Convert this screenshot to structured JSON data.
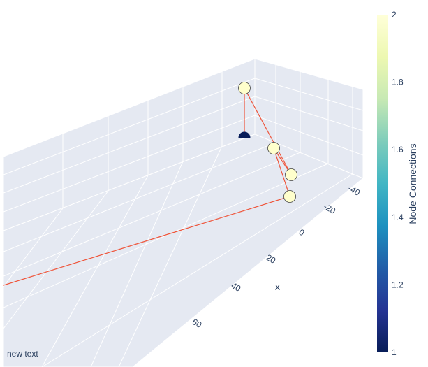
{
  "chart_data": {
    "type": "scatter3d",
    "title": "",
    "annotation": "new text",
    "axes": {
      "x": {
        "label": "x",
        "ticks": [
          -40,
          -20,
          0,
          20,
          40,
          60
        ]
      },
      "y": {
        "label": "",
        "ticks": []
      },
      "z": {
        "label": "",
        "ticks": []
      }
    },
    "colorbar": {
      "title": "Node Connections",
      "range": [
        1,
        2
      ],
      "ticks": [
        "1",
        "1.2",
        "1.4",
        "1.6",
        "1.8",
        "2"
      ],
      "colorscale": "YlGnBu",
      "low_color": "#081d58",
      "high_color": "#ffffd9"
    },
    "nodes": [
      {
        "id": 1,
        "connections": 2,
        "color": "#ffffcc"
      },
      {
        "id": 2,
        "connections": 1,
        "color": "#081d58"
      },
      {
        "id": 3,
        "connections": 2,
        "color": "#ffffcc"
      },
      {
        "id": 4,
        "connections": 2,
        "color": "#ffffcc"
      },
      {
        "id": 5,
        "connections": 2,
        "color": "#ffffcc"
      }
    ],
    "edge_color": "#ef553b",
    "grid": true
  }
}
